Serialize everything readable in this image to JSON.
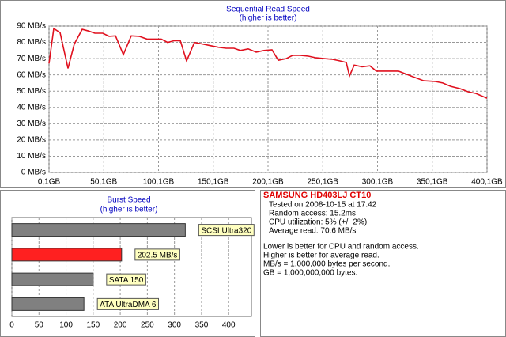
{
  "chart_data": [
    {
      "type": "line",
      "title": "Sequential Read Speed",
      "subtitle": "(higher is better)",
      "x": [
        0.1,
        4.4,
        10.2,
        17.4,
        23.2,
        30.4,
        36.2,
        42,
        49.2,
        55,
        60.8,
        68,
        75.2,
        82.4,
        89.6,
        96.9,
        102.6,
        108.4,
        114.2,
        120,
        125.7,
        132.9,
        140.2,
        147.4,
        154.6,
        161.8,
        169,
        174.8,
        182,
        189.3,
        196.5,
        203.7,
        209.5,
        216.7,
        222.5,
        229.7,
        236.9,
        244.1,
        251.4,
        258.6,
        265.8,
        271.6,
        274.5,
        278.8,
        286,
        293.2,
        299,
        309.1,
        319.2,
        330.8,
        342.3,
        352.4,
        359.7,
        366.9,
        375.6,
        382.8,
        390,
        400.1
      ],
      "values": [
        67,
        88.5,
        86,
        64,
        79,
        88,
        87,
        85.6,
        85.6,
        83.7,
        84,
        72.5,
        84,
        83.7,
        82,
        82,
        82,
        80,
        81,
        81,
        68.6,
        80,
        79,
        78,
        77,
        76.4,
        76.4,
        75,
        76,
        74,
        75,
        75.4,
        69,
        70,
        72,
        72,
        71.5,
        70.5,
        70,
        69.6,
        68.6,
        67.6,
        59.3,
        66,
        65,
        65.6,
        62.3,
        62.3,
        62.3,
        59.3,
        56.4,
        56,
        55,
        53,
        51.5,
        49.6,
        48.6,
        45.7
      ],
      "color": "#e0101e",
      "xlim": [
        0.1,
        400.1
      ],
      "xticks": [
        {
          "value": 0.1,
          "label": "0,1GB"
        },
        {
          "value": 50.1,
          "label": "50,1GB"
        },
        {
          "value": 100.1,
          "label": "100,1GB"
        },
        {
          "value": 150.1,
          "label": "150,1GB"
        },
        {
          "value": 200.1,
          "label": "200,1GB"
        },
        {
          "value": 250.1,
          "label": "250,1GB"
        },
        {
          "value": 300.1,
          "label": "300,1GB"
        },
        {
          "value": 350.1,
          "label": "350,1GB"
        },
        {
          "value": 400.1,
          "label": "400,1GB"
        }
      ],
      "ylim": [
        0,
        90
      ],
      "yticks": [
        {
          "value": 0,
          "label": "0 MB/s"
        },
        {
          "value": 10,
          "label": "10 MB/s"
        },
        {
          "value": 20,
          "label": "20 MB/s"
        },
        {
          "value": 30,
          "label": "30 MB/s"
        },
        {
          "value": 40,
          "label": "40 MB/s"
        },
        {
          "value": 50,
          "label": "50 MB/s"
        },
        {
          "value": 60,
          "label": "60 MB/s"
        },
        {
          "value": 70,
          "label": "70 MB/s"
        },
        {
          "value": 80,
          "label": "80 MB/s"
        },
        {
          "value": 90,
          "label": "90 MB/s"
        }
      ],
      "grid": true
    },
    {
      "type": "hbar",
      "title": "Burst Speed",
      "subtitle": "(higher is better)",
      "categories": [
        "SCSI Ultra320",
        null,
        "SATA 150",
        "ATA UltraDMA 6"
      ],
      "values": [
        320,
        202.5,
        150,
        133
      ],
      "value_labels": [
        null,
        "202.5 MB/s",
        null,
        null
      ],
      "colors": [
        "#808080",
        "#ff2020",
        "#808080",
        "#808080"
      ],
      "xlim": [
        0,
        442
      ],
      "xticks": [
        0,
        50,
        100,
        150,
        200,
        250,
        300,
        350,
        400
      ],
      "grid": true
    }
  ],
  "info": {
    "title": "SAMSUNG HD403LJ CT10",
    "lines": [
      "Tested on 2008-10-15 at 17:42",
      "Random access: 15.2ms",
      "CPU utilization: 5% (+/- 2%)",
      "Average read: 70.6 MB/s"
    ],
    "notes": [
      "Lower is better for CPU and random access.",
      "Higher is better for average read.",
      "MB/s = 1,000,000 bytes per second.",
      "GB = 1,000,000,000 bytes."
    ]
  }
}
